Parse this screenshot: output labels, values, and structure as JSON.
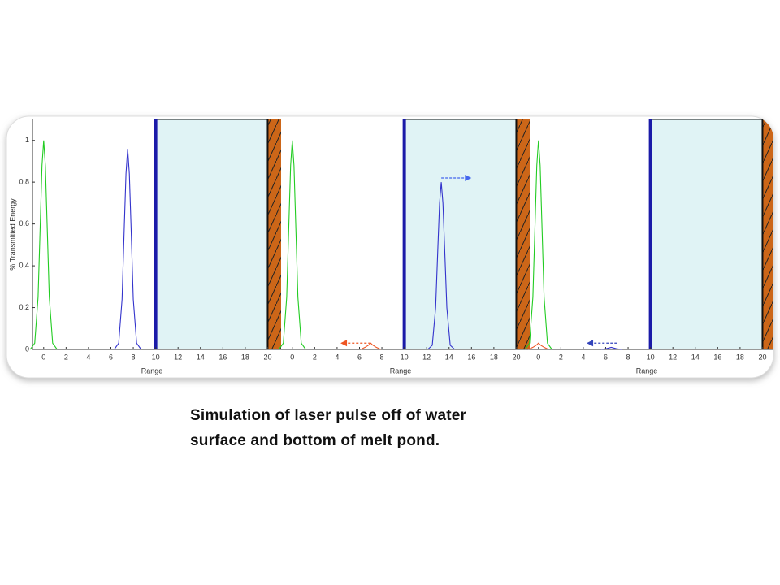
{
  "chart_data": [
    {
      "type": "line",
      "xlabel": "Range",
      "ylabel": "% Transmitted Energy",
      "xlim": [
        -1,
        21.2
      ],
      "ylim": [
        0,
        1.1
      ],
      "xticks": [
        0,
        2,
        4,
        6,
        8,
        10,
        12,
        14,
        16,
        18,
        20
      ],
      "yticks": [
        0,
        0.2,
        0.4,
        0.6,
        0.8,
        1
      ],
      "water_span": [
        10,
        20
      ],
      "series": [
        {
          "color": "#22cc22",
          "x": [
            -1.2,
            -0.8,
            -0.5,
            -0.3,
            -0.15,
            0,
            0.15,
            0.3,
            0.5,
            0.8,
            1.2
          ],
          "values": [
            0,
            0.03,
            0.25,
            0.61,
            0.88,
            1,
            0.88,
            0.61,
            0.25,
            0.03,
            0
          ]
        },
        {
          "color": "#3333cc",
          "x": [
            6.3,
            6.7,
            7,
            7.2,
            7.35,
            7.5,
            7.65,
            7.8,
            8,
            8.3,
            8.7
          ],
          "values": [
            0,
            0.03,
            0.24,
            0.59,
            0.84,
            0.96,
            0.84,
            0.59,
            0.24,
            0.03,
            0
          ]
        }
      ],
      "arrows": []
    },
    {
      "type": "line",
      "xlabel": "Range",
      "xlim": [
        -1,
        21.2
      ],
      "ylim": [
        0,
        1.1
      ],
      "xticks": [
        0,
        2,
        4,
        6,
        8,
        10,
        12,
        14,
        16,
        18,
        20
      ],
      "water_span": [
        10,
        20
      ],
      "series": [
        {
          "color": "#22cc22",
          "x": [
            -1.2,
            -0.8,
            -0.5,
            -0.3,
            -0.15,
            0,
            0.15,
            0.3,
            0.5,
            0.8,
            1.2
          ],
          "values": [
            0,
            0.03,
            0.25,
            0.61,
            0.88,
            1,
            0.88,
            0.61,
            0.25,
            0.03,
            0
          ]
        },
        {
          "color": "#3333cc",
          "x": [
            12.1,
            12.5,
            12.8,
            13,
            13.15,
            13.3,
            13.45,
            13.6,
            13.8,
            14.1,
            14.5
          ],
          "values": [
            0,
            0.02,
            0.2,
            0.49,
            0.7,
            0.8,
            0.7,
            0.49,
            0.2,
            0.02,
            0
          ]
        },
        {
          "color": "#ee5522",
          "x": [
            6.1,
            6.5,
            6.8,
            7,
            7.2,
            7.5,
            7.9
          ],
          "values": [
            0,
            0.01,
            0.02,
            0.03,
            0.02,
            0.01,
            0
          ]
        }
      ],
      "arrows": [
        {
          "color": "#4466ee",
          "x": [
            13.3,
            16
          ],
          "y": 0.82
        },
        {
          "color": "#ee5522",
          "x": [
            7,
            4.3
          ],
          "y": 0.03
        }
      ]
    },
    {
      "type": "line",
      "xlabel": "Range",
      "xlim": [
        -1,
        21.2
      ],
      "ylim": [
        0,
        1.1
      ],
      "xticks": [
        0,
        2,
        4,
        6,
        8,
        10,
        12,
        14,
        16,
        18,
        20
      ],
      "water_span": [
        10,
        20
      ],
      "series": [
        {
          "color": "#22cc22",
          "x": [
            -1.2,
            -0.8,
            -0.5,
            -0.3,
            -0.15,
            0,
            0.15,
            0.3,
            0.5,
            0.8,
            1.2
          ],
          "values": [
            0,
            0.03,
            0.25,
            0.61,
            0.88,
            1,
            0.88,
            0.61,
            0.25,
            0.03,
            0
          ]
        },
        {
          "color": "#ee5522",
          "x": [
            -0.9,
            -0.5,
            -0.2,
            0,
            0.2,
            0.5,
            0.9
          ],
          "values": [
            0,
            0.01,
            0.02,
            0.03,
            0.02,
            0.01,
            0
          ]
        },
        {
          "color": "#3333cc",
          "x": [
            5.6,
            6,
            6.3,
            6.5,
            6.7,
            7,
            7.4
          ],
          "values": [
            0,
            0.003,
            0.007,
            0.01,
            0.007,
            0.003,
            0
          ]
        }
      ],
      "arrows": [
        {
          "color": "#3344bb",
          "x": [
            7,
            4.3
          ],
          "y": 0.03
        }
      ]
    }
  ],
  "caption": [
    "Simulation of laser pulse off of water",
    "surface and bottom of melt pond."
  ]
}
